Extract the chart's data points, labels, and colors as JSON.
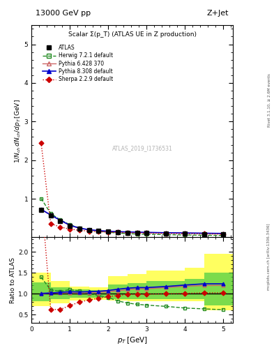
{
  "title_top": "13000 GeV pp",
  "title_right": "Z+Jet",
  "main_title": "Scalar Σ(p_T) (ATLAS UE in Z production)",
  "ylabel_main": "1/N_{ch} dN_{ch}/dp_T [GeV]",
  "ylabel_ratio": "Ratio to ATLAS",
  "xlabel": "p_T [GeV]",
  "watermark": "ATLAS_2019_I1736531",
  "right_label": "mcplots.cern.ch [arXiv:1306.3436]",
  "rivet_label": "Rivet 3.1.10, ≥ 2.6M events",
  "atlas_x": [
    0.25,
    0.5,
    0.75,
    1.0,
    1.25,
    1.5,
    1.75,
    2.0,
    2.25,
    2.5,
    2.75,
    3.0,
    3.5,
    4.0,
    4.5,
    5.0
  ],
  "atlas_y": [
    0.72,
    0.57,
    0.43,
    0.3,
    0.23,
    0.19,
    0.165,
    0.148,
    0.135,
    0.125,
    0.118,
    0.113,
    0.103,
    0.095,
    0.088,
    0.083
  ],
  "atlas_yerr": [
    0.03,
    0.02,
    0.015,
    0.01,
    0.008,
    0.007,
    0.006,
    0.005,
    0.005,
    0.004,
    0.004,
    0.004,
    0.003,
    0.003,
    0.003,
    0.003
  ],
  "herwig_x": [
    0.25,
    0.5,
    0.75,
    1.0,
    1.25,
    1.5,
    1.75,
    2.0,
    2.25,
    2.5,
    2.75,
    3.0,
    3.5,
    4.0,
    4.5,
    5.0
  ],
  "herwig_y": [
    1.01,
    0.62,
    0.455,
    0.33,
    0.245,
    0.19,
    0.158,
    0.135,
    0.112,
    0.098,
    0.088,
    0.082,
    0.072,
    0.063,
    0.056,
    0.051
  ],
  "pythia6_x": [
    0.25,
    0.5,
    0.75,
    1.0,
    1.25,
    1.5,
    1.75,
    2.0,
    2.25,
    2.5,
    2.75,
    3.0,
    3.5,
    4.0,
    4.5,
    5.0
  ],
  "pythia6_y": [
    0.72,
    0.58,
    0.44,
    0.31,
    0.235,
    0.195,
    0.17,
    0.155,
    0.145,
    0.137,
    0.132,
    0.127,
    0.118,
    0.112,
    0.106,
    0.1
  ],
  "pythia8_x": [
    0.25,
    0.5,
    0.75,
    1.0,
    1.25,
    1.5,
    1.75,
    2.0,
    2.25,
    2.5,
    2.75,
    3.0,
    3.5,
    4.0,
    4.5,
    5.0
  ],
  "pythia8_y": [
    0.73,
    0.58,
    0.445,
    0.315,
    0.24,
    0.2,
    0.175,
    0.16,
    0.15,
    0.142,
    0.136,
    0.13,
    0.121,
    0.115,
    0.109,
    0.103
  ],
  "sherpa_x": [
    0.25,
    0.5,
    0.75,
    1.0,
    1.25,
    1.5,
    1.75,
    2.0,
    2.25,
    2.5,
    2.75,
    3.0,
    3.5,
    4.0,
    4.5,
    5.0
  ],
  "sherpa_y": [
    2.45,
    0.355,
    0.27,
    0.215,
    0.185,
    0.162,
    0.148,
    0.138,
    0.13,
    0.123,
    0.117,
    0.112,
    0.103,
    0.096,
    0.09,
    0.085
  ],
  "herwig_ratio": [
    1.4,
    1.09,
    1.06,
    1.1,
    1.07,
    1.0,
    0.96,
    0.91,
    0.83,
    0.78,
    0.75,
    0.73,
    0.7,
    0.66,
    0.64,
    0.62
  ],
  "pythia6_ratio": [
    1.0,
    1.02,
    1.02,
    1.03,
    1.02,
    1.03,
    1.03,
    1.05,
    1.07,
    1.1,
    1.12,
    1.12,
    1.15,
    1.18,
    1.2,
    1.2
  ],
  "pythia8_ratio": [
    1.01,
    1.02,
    1.035,
    1.05,
    1.044,
    1.053,
    1.06,
    1.08,
    1.11,
    1.135,
    1.15,
    1.15,
    1.175,
    1.21,
    1.24,
    1.24
  ],
  "sherpa_ratio": [
    3.4,
    0.623,
    0.628,
    0.717,
    0.804,
    0.853,
    0.897,
    0.932,
    0.963,
    0.984,
    0.992,
    0.991,
    1.0,
    1.01,
    1.023,
    1.024
  ],
  "band_x_edges": [
    0.0,
    0.5,
    1.0,
    1.5,
    2.0,
    2.5,
    3.0,
    4.0,
    4.5,
    5.25
  ],
  "band_yellow_lo": [
    0.7,
    0.78,
    0.84,
    0.86,
    0.84,
    0.82,
    0.82,
    0.82,
    0.6,
    0.6
  ],
  "band_yellow_hi": [
    1.5,
    1.3,
    1.18,
    1.16,
    1.42,
    1.48,
    1.55,
    1.62,
    1.95,
    1.95
  ],
  "band_green_lo": [
    0.82,
    0.88,
    0.9,
    0.9,
    0.88,
    0.87,
    0.87,
    0.87,
    0.72,
    0.7
  ],
  "band_green_hi": [
    1.28,
    1.16,
    1.1,
    1.09,
    1.22,
    1.26,
    1.3,
    1.36,
    1.5,
    1.5
  ],
  "color_herwig": "#228B22",
  "color_pythia6": "#cc6666",
  "color_pythia8": "#0000cc",
  "color_sherpa": "#cc0000",
  "color_yellow": "#ffff44",
  "color_green": "#44cc44",
  "ylim_main": [
    0.0,
    5.5
  ],
  "ylim_ratio": [
    0.3,
    2.35
  ],
  "xlim": [
    0.0,
    5.25
  ],
  "yticks_main": [
    1,
    2,
    3,
    4,
    5
  ],
  "yticks_ratio": [
    0.5,
    1.0,
    1.5,
    2.0
  ]
}
